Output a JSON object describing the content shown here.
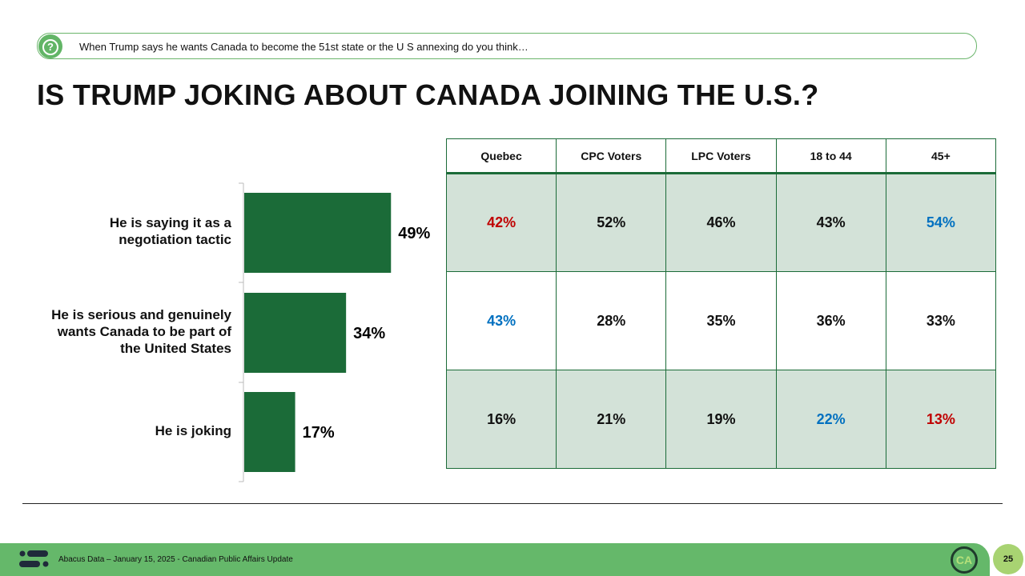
{
  "question": "When Trump says he wants Canada to become the 51st state or the U S  annexing do you think…",
  "title": "IS TRUMP JOKING ABOUT CANADA JOINING THE U.S.?",
  "chart_data": {
    "type": "bar",
    "orientation": "horizontal",
    "categories": [
      "He is saying it as a negotiation tactic",
      "He is serious and genuinely wants Canada to be part of the United States",
      "He is joking"
    ],
    "values": [
      49,
      34,
      17
    ],
    "data_labels": [
      "49%",
      "34%",
      "17%"
    ],
    "bar_color": "#1b6b38",
    "xlim": [
      0,
      100
    ]
  },
  "table": {
    "headers": [
      "Quebec",
      "CPC Voters",
      "LPC Voters",
      "18 to 44",
      "45+"
    ],
    "rows": [
      [
        "42%",
        "52%",
        "46%",
        "43%",
        "54%"
      ],
      [
        "43%",
        "28%",
        "35%",
        "36%",
        "33%"
      ],
      [
        "16%",
        "21%",
        "19%",
        "22%",
        "13%"
      ]
    ],
    "highlight": [
      [
        "red",
        "",
        "",
        "",
        "blue"
      ],
      [
        "blue",
        "",
        "",
        "",
        ""
      ],
      [
        "",
        "",
        "",
        "blue",
        "red"
      ]
    ],
    "colors": {
      "red": "#c00000",
      "blue": "#0070c0",
      "shade": "#d3e2d8"
    }
  },
  "footer": {
    "text": "Abacus Data – January 15, 2025 - Canadian Public Affairs Update",
    "badge": "CA",
    "page": "25"
  }
}
